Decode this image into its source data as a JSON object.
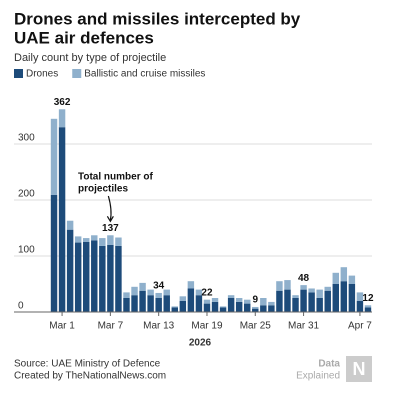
{
  "chart_data": {
    "type": "stacked_bar",
    "title": "Drones and missiles intercepted by UAE air defences",
    "subtitle": "Daily count by type of projectile",
    "x_label": "2026",
    "categories": [
      null,
      "Mar 1",
      null,
      null,
      null,
      null,
      null,
      "Mar 7",
      null,
      null,
      null,
      null,
      null,
      "Mar 13",
      null,
      null,
      null,
      null,
      null,
      "Mar 19",
      null,
      null,
      null,
      null,
      null,
      "Mar 25",
      null,
      null,
      null,
      null,
      null,
      "Mar 31",
      null,
      null,
      null,
      null,
      null,
      null,
      "Apr 7",
      null
    ],
    "series": [
      {
        "name": "Drones",
        "color": "#1d4b7a",
        "values": [
          209,
          330,
          147,
          124,
          125,
          128,
          118,
          120,
          118,
          25,
          30,
          38,
          30,
          25,
          30,
          8,
          20,
          42,
          30,
          15,
          18,
          8,
          25,
          18,
          15,
          6,
          12,
          12,
          38,
          40,
          25,
          40,
          35,
          25,
          38,
          50,
          55,
          50,
          20,
          8
        ]
      },
      {
        "name": "Ballistic and cruise missiles",
        "color": "#8fb0cc",
        "values": [
          136,
          32,
          16,
          11,
          7,
          9,
          14,
          17,
          15,
          10,
          15,
          14,
          10,
          9,
          10,
          2,
          8,
          13,
          10,
          7,
          7,
          2,
          5,
          7,
          7,
          3,
          13,
          6,
          17,
          17,
          5,
          8,
          7,
          15,
          7,
          20,
          25,
          15,
          15,
          4
        ]
      }
    ],
    "total_labels": [
      null,
      "362",
      null,
      null,
      null,
      null,
      null,
      "137",
      null,
      null,
      null,
      null,
      null,
      "34",
      null,
      null,
      null,
      null,
      null,
      "22",
      null,
      null,
      null,
      null,
      null,
      "9",
      null,
      null,
      null,
      null,
      null,
      "48",
      null,
      null,
      null,
      null,
      null,
      null,
      null,
      "12"
    ],
    "annotation": "Total number of projectiles",
    "annotation_index": 7,
    "ylim": [
      0,
      400
    ],
    "yticks": [
      0,
      100,
      200,
      300
    ],
    "grid": true,
    "source": "Source: UAE Ministry of Defence",
    "credit": "Created by TheNationalNews.com",
    "brand": "Data Explained"
  }
}
